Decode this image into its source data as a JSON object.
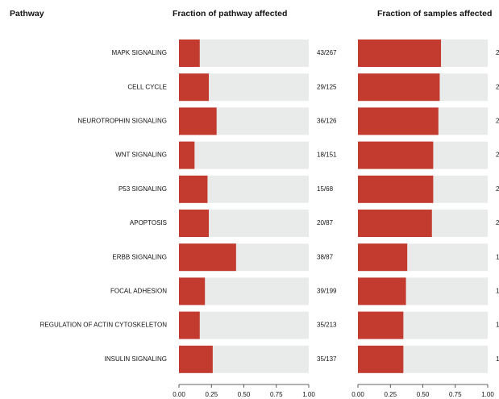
{
  "header": "Pathway",
  "chart_data": [
    {
      "type": "hbar",
      "title": "Fraction of pathway affected",
      "color": "#c23b2e",
      "track_color": "#e9ebeb",
      "categories": [
        "MAPK SIGNALING",
        "CELL CYCLE",
        "NEUROTROPHIN SIGNALING",
        "WNT SIGNALING",
        "P53 SIGNALING",
        "APOPTOSIS",
        "ERBB SIGNALING",
        "FOCAL ADHESION",
        "REGULATION OF ACTIN CYTOSKELETON",
        "INSULIN SIGNALING"
      ],
      "values": [
        0.16,
        0.23,
        0.29,
        0.12,
        0.22,
        0.23,
        0.44,
        0.2,
        0.16,
        0.26
      ],
      "value_labels": [
        "43/267",
        "29/125",
        "36/126",
        "18/151",
        "15/68",
        "20/87",
        "38/87",
        "39/199",
        "35/213",
        "35/137"
      ],
      "xlim": [
        0,
        1
      ],
      "xticks": [
        {
          "value": 0,
          "label": "0.00"
        },
        {
          "value": 0.25,
          "label": "0.25"
        },
        {
          "value": 0.5,
          "label": "0.50"
        },
        {
          "value": 0.75,
          "label": "0.75"
        },
        {
          "value": 1,
          "label": "1.00"
        }
      ]
    },
    {
      "type": "hbar",
      "title": "Fraction of samples affected",
      "color": "#c23b2e",
      "track_color": "#e9ebeb",
      "values": [
        0.64,
        0.63,
        0.62,
        0.58,
        0.58,
        0.57,
        0.38,
        0.37,
        0.35,
        0.35
      ],
      "annotations": [
        "2",
        "2",
        "2",
        "2",
        "2",
        "2",
        "1",
        "1",
        "1",
        "1"
      ],
      "xlim": [
        0,
        1
      ],
      "xticks": [
        {
          "value": 0,
          "label": "0.00"
        },
        {
          "value": 0.25,
          "label": "0.25"
        },
        {
          "value": 0.5,
          "label": "0.50"
        },
        {
          "value": 0.75,
          "label": "0.75"
        },
        {
          "value": 1,
          "label": "1.00"
        }
      ]
    }
  ]
}
